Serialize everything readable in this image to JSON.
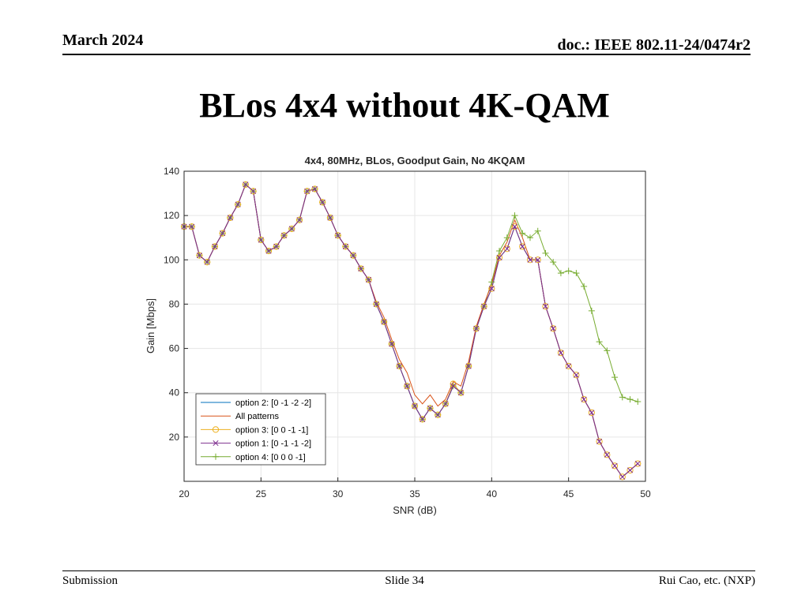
{
  "header": {
    "date": "March 2024",
    "doc": "doc.: IEEE 802.11-24/0474r2"
  },
  "slide": {
    "title": "BLos 4x4 without 4K-QAM"
  },
  "footer": {
    "left": "Submission",
    "center": "Slide 34",
    "right": "Rui Cao, etc. (NXP)"
  },
  "chart_data": {
    "type": "line",
    "title": "4x4, 80MHz, BLos, Goodput Gain, No 4KQAM",
    "xlabel": "SNR (dB)",
    "ylabel": "Gain [Mbps]",
    "xlim": [
      20,
      50
    ],
    "ylim": [
      0,
      140
    ],
    "xticks": [
      20,
      25,
      30,
      35,
      40,
      45,
      50
    ],
    "yticks": [
      20,
      40,
      60,
      80,
      100,
      120,
      140
    ],
    "grid": true,
    "legend_position": "bottom-left",
    "x": [
      20,
      20.5,
      21,
      21.5,
      22,
      22.5,
      23,
      23.5,
      24,
      24.5,
      25,
      25.5,
      26,
      26.5,
      27,
      27.5,
      28,
      28.5,
      29,
      29.5,
      30,
      30.5,
      31,
      31.5,
      32,
      32.5,
      33,
      33.5,
      34,
      34.5,
      35,
      35.5,
      36,
      36.5,
      37,
      37.5,
      38,
      38.5,
      39,
      39.5,
      40,
      40.5,
      41,
      41.5,
      42,
      42.5,
      43,
      43.5,
      44,
      44.5,
      45,
      45.5,
      46,
      46.5,
      47,
      47.5,
      48,
      48.5,
      49,
      49.5
    ],
    "series": [
      {
        "name": "option 2: [0 -1 -2 -2]",
        "color": "#0072BD",
        "marker": "none",
        "values": [
          115,
          115,
          102,
          99,
          106,
          112,
          119,
          125,
          134,
          131,
          109,
          104,
          106,
          111,
          114,
          118,
          131,
          132,
          126,
          119,
          111,
          106,
          102,
          96,
          91,
          80,
          72,
          62,
          52,
          43,
          34,
          28,
          33,
          30,
          35,
          43,
          40,
          52,
          69,
          79,
          87,
          101,
          105,
          115,
          106,
          100,
          100,
          79,
          69,
          58,
          52,
          48,
          37,
          31,
          18,
          12,
          7,
          2,
          5,
          8
        ]
      },
      {
        "name": "All patterns",
        "color": "#D95319",
        "marker": "none",
        "values": [
          115,
          115,
          102,
          99,
          106,
          112,
          119,
          125,
          134,
          131,
          109,
          104,
          106,
          111,
          114,
          118,
          131,
          132,
          126,
          119,
          111,
          106,
          102,
          96,
          91,
          81,
          74,
          64,
          55,
          49,
          39,
          35,
          39,
          34,
          37,
          45,
          43,
          54,
          70,
          80,
          89,
          102,
          108,
          118,
          110,
          100,
          100,
          79,
          69,
          58,
          52,
          48,
          37,
          31,
          18,
          12,
          7,
          2,
          5,
          8
        ]
      },
      {
        "name": "option 3: [0 0 -1 -1]",
        "color": "#EDB120",
        "marker": "o",
        "values": [
          115,
          115,
          102,
          99,
          106,
          112,
          119,
          125,
          134,
          131,
          109,
          104,
          106,
          111,
          114,
          118,
          131,
          132,
          126,
          119,
          111,
          106,
          102,
          96,
          91,
          80,
          72,
          62,
          52,
          43,
          34,
          28,
          33,
          30,
          35,
          44,
          40,
          52,
          69,
          79,
          87,
          101,
          105,
          115,
          106,
          100,
          100,
          79,
          69,
          58,
          52,
          48,
          37,
          31,
          18,
          12,
          7,
          2,
          5,
          8
        ]
      },
      {
        "name": "option 1: [0 -1 -1 -2]",
        "color": "#7E2F8E",
        "marker": "x",
        "values": [
          115,
          115,
          102,
          99,
          106,
          112,
          119,
          125,
          134,
          131,
          109,
          104,
          106,
          111,
          114,
          118,
          131,
          132,
          126,
          119,
          111,
          106,
          102,
          96,
          91,
          80,
          72,
          62,
          52,
          43,
          34,
          28,
          33,
          30,
          35,
          43,
          40,
          52,
          69,
          79,
          87,
          101,
          105,
          115,
          106,
          100,
          100,
          79,
          69,
          58,
          52,
          48,
          37,
          31,
          18,
          12,
          7,
          2,
          5,
          8
        ]
      },
      {
        "name": "option 4: [0 0 0 -1]",
        "color": "#77AC30",
        "marker": "+",
        "values": [
          115,
          115,
          102,
          99,
          106,
          112,
          119,
          125,
          134,
          131,
          109,
          104,
          106,
          111,
          114,
          118,
          131,
          132,
          126,
          119,
          111,
          106,
          102,
          96,
          91,
          80,
          72,
          62,
          52,
          43,
          34,
          28,
          33,
          30,
          35,
          43,
          40,
          52,
          69,
          79,
          90,
          104,
          110,
          120,
          112,
          110,
          113,
          103,
          99,
          94,
          95,
          94,
          88,
          77,
          63,
          59,
          47,
          38,
          37,
          36
        ]
      }
    ]
  }
}
